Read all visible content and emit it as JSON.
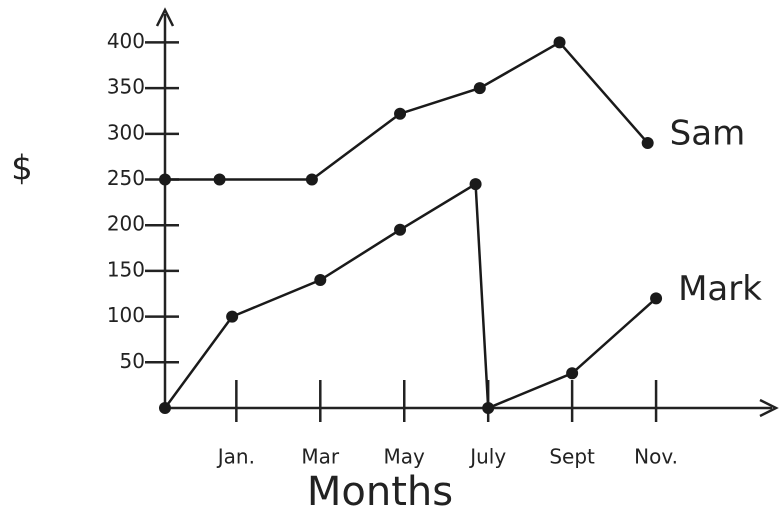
{
  "chart_data": {
    "type": "line",
    "x_label": "Months",
    "y_label": "$",
    "xlim": [
      -0.7,
      13.5
    ],
    "xticks": [
      {
        "value": 1,
        "label": "Jan."
      },
      {
        "value": 3,
        "label": "Mar"
      },
      {
        "value": 5,
        "label": "May"
      },
      {
        "value": 7,
        "label": "July"
      },
      {
        "value": 9,
        "label": "Sept"
      },
      {
        "value": 11,
        "label": "Nov."
      }
    ],
    "ylim": [
      0,
      430
    ],
    "yticks": [
      50,
      100,
      150,
      200,
      250,
      300,
      350,
      400
    ],
    "series": [
      {
        "name": "Sam",
        "color": "#1a1a1a",
        "x": [
          -0.7,
          0.6,
          2.8,
          4.9,
          6.8,
          8.7,
          10.8
        ],
        "values": [
          250,
          250,
          250,
          322,
          350,
          400,
          290
        ]
      },
      {
        "name": "Mark",
        "color": "#1a1a1a",
        "x": [
          -0.7,
          0.9,
          3,
          4.9,
          6.7,
          7,
          9,
          11
        ],
        "values": [
          0,
          100,
          140,
          195,
          245,
          0,
          38,
          120
        ]
      }
    ]
  }
}
